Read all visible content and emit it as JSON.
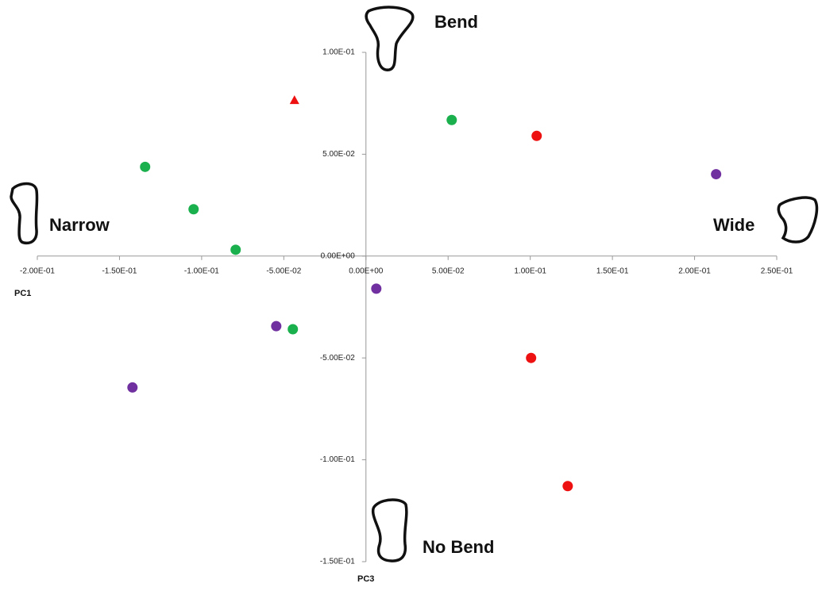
{
  "chart_data": {
    "type": "scatter",
    "xlabel": "PC1",
    "ylabel": "PC3",
    "xlim": [
      -0.2,
      0.25
    ],
    "ylim": [
      -0.15,
      0.1
    ],
    "xticks": [
      {
        "value": -0.2,
        "label": "-2.00E-01"
      },
      {
        "value": -0.15,
        "label": "-1.50E-01"
      },
      {
        "value": -0.1,
        "label": "-1.00E-01"
      },
      {
        "value": -0.05,
        "label": "-5.00E-02"
      },
      {
        "value": 0,
        "label": "0.00E+00"
      },
      {
        "value": 0.05,
        "label": "5.00E-02"
      },
      {
        "value": 0.1,
        "label": "1.00E-01"
      },
      {
        "value": 0.15,
        "label": "1.50E-01"
      },
      {
        "value": 0.2,
        "label": "2.00E-01"
      },
      {
        "value": 0.25,
        "label": "2.50E-01"
      }
    ],
    "yticks": [
      {
        "value": -0.15,
        "label": "-1.50E-01"
      },
      {
        "value": -0.1,
        "label": "-1.00E-01"
      },
      {
        "value": -0.05,
        "label": "-5.00E-02"
      },
      {
        "value": 0,
        "label": "0.00E+00"
      },
      {
        "value": 0.05,
        "label": "5.00E-02"
      },
      {
        "value": 0.1,
        "label": "1.00E-01"
      }
    ],
    "annotations": [
      "Bend",
      "Narrow",
      "Wide",
      "No Bend"
    ],
    "series": [
      {
        "color": "#1bb04e",
        "marker": "circle",
        "x": [
          -0.1344,
          -0.1049,
          -0.0793,
          -0.0445,
          0.0522
        ],
        "y": [
          0.0438,
          0.023,
          0.0031,
          -0.0359,
          0.0668
        ]
      },
      {
        "color": "#7030a0",
        "marker": "circle",
        "x": [
          -0.1421,
          -0.0546,
          0.0063,
          0.2131
        ],
        "y": [
          -0.0645,
          -0.0344,
          -0.016,
          0.0402
        ]
      },
      {
        "color": "#ee1111",
        "marker": "circle",
        "x": [
          0.1039,
          0.1005,
          0.1228
        ],
        "y": [
          0.059,
          -0.05,
          -0.1129
        ]
      },
      {
        "color": "#ee1111",
        "marker": "triangle",
        "x": [
          -0.0435
        ],
        "y": [
          0.0766
        ]
      }
    ]
  }
}
